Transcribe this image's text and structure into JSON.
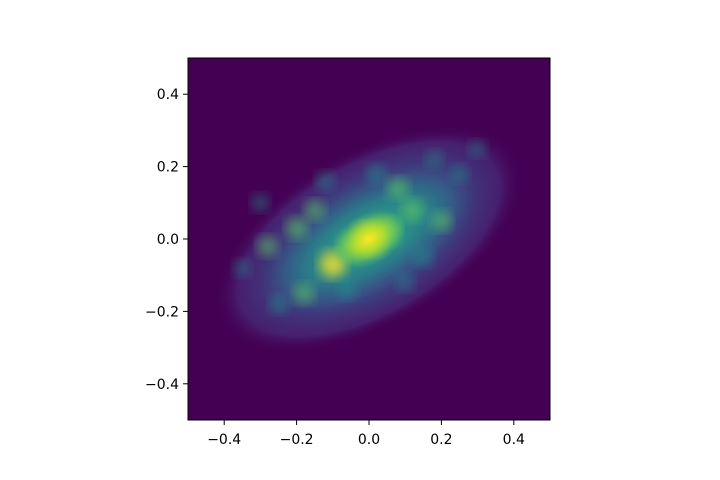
{
  "chart_data": {
    "type": "heatmap",
    "title": "",
    "xlabel": "",
    "ylabel": "",
    "xlim": [
      -0.5,
      0.5
    ],
    "ylim": [
      -0.5,
      0.5
    ],
    "grid": false,
    "legend": "none",
    "colormap": "viridis",
    "colors": {
      "background": "#440154",
      "low": "#3b528b",
      "mid": "#21918c",
      "high": "#5ec962",
      "peak": "#fde725"
    },
    "x_ticks": [
      {
        "value": -0.4,
        "label": "−0.4"
      },
      {
        "value": -0.2,
        "label": "−0.2"
      },
      {
        "value": 0.0,
        "label": "0.0"
      },
      {
        "value": 0.2,
        "label": "0.2"
      },
      {
        "value": 0.4,
        "label": "0.4"
      }
    ],
    "y_ticks": [
      {
        "value": 0.4,
        "label": "0.4"
      },
      {
        "value": 0.2,
        "label": "0.2"
      },
      {
        "value": 0.0,
        "label": "0.0"
      },
      {
        "value": -0.2,
        "label": "−0.2"
      },
      {
        "value": -0.4,
        "label": "−0.4"
      }
    ],
    "galaxy": {
      "center": [
        0.0,
        0.0
      ],
      "halo_radii": [
        0.47,
        0.24
      ],
      "disk_radii": [
        0.32,
        0.14
      ],
      "bulge_radii": [
        0.11,
        0.07
      ],
      "rotation_deg": 30
    },
    "clumps": [
      {
        "x": 0.0,
        "y": 0.0,
        "intensity": 1.0
      },
      {
        "x": -0.1,
        "y": -0.07,
        "intensity": 0.85
      },
      {
        "x": 0.05,
        "y": 0.02,
        "intensity": 0.8
      },
      {
        "x": 0.12,
        "y": 0.08,
        "intensity": 0.6
      },
      {
        "x": -0.05,
        "y": -0.02,
        "intensity": 0.75
      },
      {
        "x": 0.08,
        "y": 0.14,
        "intensity": 0.55
      },
      {
        "x": -0.2,
        "y": 0.03,
        "intensity": 0.55
      },
      {
        "x": -0.28,
        "y": -0.02,
        "intensity": 0.5
      },
      {
        "x": -0.18,
        "y": -0.15,
        "intensity": 0.5
      },
      {
        "x": -0.06,
        "y": -0.14,
        "intensity": 0.45
      },
      {
        "x": 0.2,
        "y": 0.05,
        "intensity": 0.5
      },
      {
        "x": 0.02,
        "y": 0.18,
        "intensity": 0.45
      },
      {
        "x": -0.12,
        "y": 0.16,
        "intensity": 0.4
      },
      {
        "x": 0.25,
        "y": 0.18,
        "intensity": 0.35
      },
      {
        "x": -0.25,
        "y": -0.18,
        "intensity": 0.4
      },
      {
        "x": 0.15,
        "y": -0.05,
        "intensity": 0.45
      },
      {
        "x": -0.3,
        "y": 0.1,
        "intensity": 0.35
      },
      {
        "x": 0.3,
        "y": 0.25,
        "intensity": 0.3
      },
      {
        "x": 0.1,
        "y": -0.12,
        "intensity": 0.35
      },
      {
        "x": -0.15,
        "y": 0.08,
        "intensity": 0.5
      },
      {
        "x": 0.18,
        "y": 0.22,
        "intensity": 0.35
      },
      {
        "x": -0.35,
        "y": -0.08,
        "intensity": 0.3
      }
    ]
  }
}
